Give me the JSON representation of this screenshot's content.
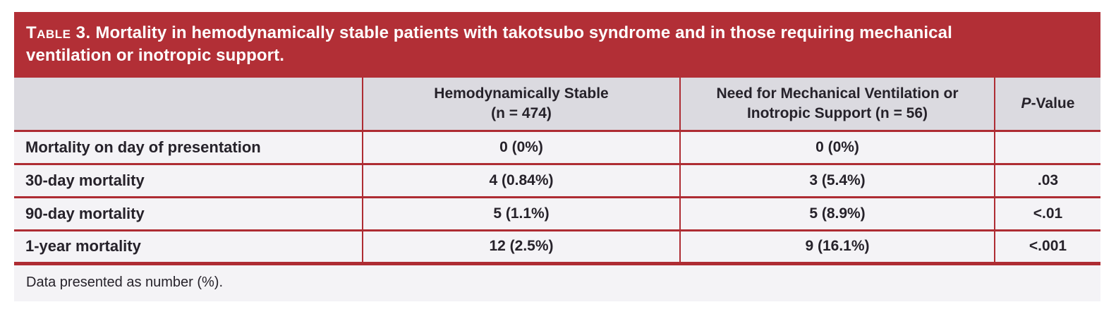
{
  "banner": {
    "table_label": "Table 3.",
    "title": "Mortality in hemodynamically stable patients with takotsubo syndrome and in those requiring mechanical ventilation or inotropic support."
  },
  "table": {
    "columns": {
      "row_header": "",
      "stable": "Hemodynamically Stable\n(n = 474)",
      "ventilation": "Need for Mechanical Ventilation or\nInotropic Support (n = 56)",
      "p_value_italic": "P",
      "p_value_rest": "-Value"
    },
    "rows": [
      {
        "label": "Mortality on day of presentation",
        "stable": "0 (0%)",
        "ventilation": "0 (0%)",
        "p_value": ""
      },
      {
        "label": "30-day mortality",
        "stable": "4 (0.84%)",
        "ventilation": "3 (5.4%)",
        "p_value": ".03"
      },
      {
        "label": "90-day mortality",
        "stable": "5 (1.1%)",
        "ventilation": "5 (8.9%)",
        "p_value": "<.01"
      },
      {
        "label": "1-year mortality",
        "stable": "12 (2.5%)",
        "ventilation": "9 (16.1%)",
        "p_value": "<.001"
      }
    ]
  },
  "footnote": "Data presented as number (%).",
  "colors": {
    "banner_red": "#b22f36",
    "rule_red": "#ae2c33",
    "header_bg": "#dbdae0",
    "row_bg": "#f4f3f6",
    "text": "#26222a",
    "banner_text": "#ffffff"
  }
}
